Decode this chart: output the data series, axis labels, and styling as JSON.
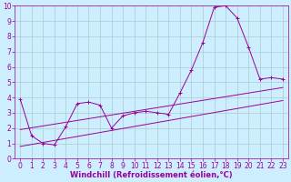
{
  "xlabel": "Windchill (Refroidissement éolien,°C)",
  "x_hours": [
    0,
    1,
    2,
    3,
    4,
    5,
    6,
    7,
    8,
    9,
    10,
    11,
    12,
    13,
    14,
    15,
    16,
    17,
    18,
    19,
    20,
    21,
    22,
    23
  ],
  "line1_y": [
    3.9,
    1.5,
    1.0,
    0.9,
    2.1,
    3.6,
    3.7,
    3.5,
    2.0,
    2.8,
    3.0,
    3.1,
    3.0,
    2.9,
    4.3,
    5.8,
    7.6,
    9.9,
    10.0,
    9.2,
    7.3,
    5.2,
    5.3,
    5.2
  ],
  "trend1_x": [
    0,
    23
  ],
  "trend1_y": [
    0.8,
    3.8
  ],
  "trend2_x": [
    0,
    23
  ],
  "trend2_y": [
    1.9,
    4.65
  ],
  "line_color": "#990099",
  "bg_color": "#cceeff",
  "grid_color": "#aacccc",
  "ylim": [
    0,
    10
  ],
  "xlim": [
    -0.5,
    23.5
  ],
  "yticks": [
    0,
    1,
    2,
    3,
    4,
    5,
    6,
    7,
    8,
    9,
    10
  ],
  "xticks": [
    0,
    1,
    2,
    3,
    4,
    5,
    6,
    7,
    8,
    9,
    10,
    11,
    12,
    13,
    14,
    15,
    16,
    17,
    18,
    19,
    20,
    21,
    22,
    23
  ],
  "tick_fontsize": 5.5,
  "xlabel_fontsize": 6.0
}
